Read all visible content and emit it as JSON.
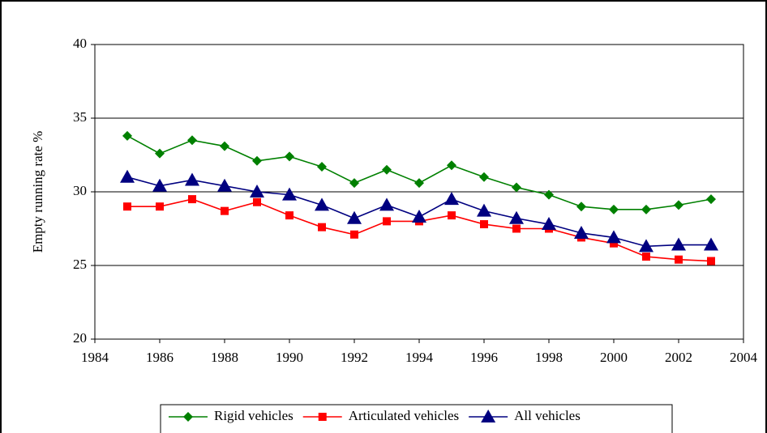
{
  "chart_data": {
    "type": "line",
    "y_label": "Empty running rate %",
    "x": [
      1985,
      1986,
      1987,
      1988,
      1989,
      1990,
      1991,
      1992,
      1993,
      1994,
      1995,
      1996,
      1997,
      1998,
      1999,
      2000,
      2001,
      2002,
      2003
    ],
    "series": [
      {
        "name": "Rigid vehicles",
        "color": "#008000",
        "marker": "diamond",
        "values": [
          33.8,
          32.6,
          33.5,
          33.1,
          32.1,
          32.4,
          31.7,
          30.6,
          31.5,
          30.6,
          31.8,
          31.0,
          30.3,
          29.8,
          29.0,
          28.8,
          28.8,
          29.1,
          29.5
        ]
      },
      {
        "name": "Articulated vehicles",
        "color": "#ff0000",
        "marker": "square",
        "values": [
          29.0,
          29.0,
          29.5,
          28.7,
          29.3,
          28.4,
          27.6,
          27.1,
          28.0,
          28.0,
          28.4,
          27.8,
          27.5,
          27.5,
          26.9,
          26.5,
          25.6,
          25.4,
          25.3
        ]
      },
      {
        "name": "All vehicles",
        "color": "#000080",
        "marker": "triangle",
        "values": [
          31.0,
          30.4,
          30.8,
          30.4,
          30.0,
          29.8,
          29.1,
          28.2,
          29.1,
          28.3,
          29.5,
          28.7,
          28.2,
          27.8,
          27.2,
          26.9,
          26.3,
          26.4,
          26.4
        ]
      }
    ],
    "xlim": [
      1984,
      2004
    ],
    "xticks": [
      1984,
      1986,
      1988,
      1990,
      1992,
      1994,
      1996,
      1998,
      2000,
      2002,
      2004
    ],
    "ylim": [
      20,
      40
    ],
    "yticks": [
      20,
      25,
      30,
      35,
      40
    ],
    "grid": true,
    "legend": "bottom"
  }
}
